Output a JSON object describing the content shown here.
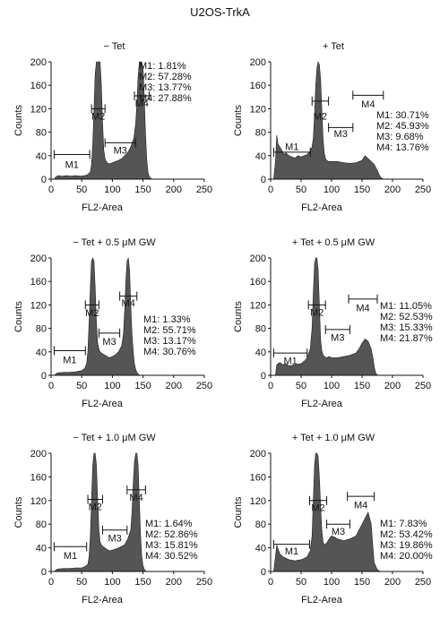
{
  "figure_title": "U2OS-TrkA",
  "colors": {
    "fill": "#555555",
    "axis": "#111111",
    "background": "#ffffff"
  },
  "chart_data": [
    {
      "type": "area",
      "title": "− Tet",
      "xlabel": "FL2-Area",
      "ylabel": "Counts",
      "xlim": [
        0,
        250
      ],
      "ylim": [
        0,
        200
      ],
      "xticks": [
        0,
        50,
        100,
        150,
        200,
        250
      ],
      "yticks": [
        0,
        40,
        80,
        120,
        160,
        200
      ],
      "series": [
        {
          "x": [
            0,
            5,
            8,
            12,
            18,
            25,
            32,
            40,
            48,
            55,
            60,
            64,
            66,
            68,
            70,
            72,
            74,
            76,
            78,
            80,
            82,
            84,
            86,
            88,
            90,
            92,
            95,
            100,
            105,
            110,
            115,
            120,
            125,
            130,
            135,
            138,
            140,
            142,
            144,
            146,
            148,
            150,
            152,
            154,
            156,
            158,
            160,
            162,
            165,
            170
          ],
          "y": [
            0,
            0,
            4,
            6,
            5,
            6,
            5,
            6,
            5,
            6,
            8,
            12,
            25,
            60,
            120,
            180,
            200,
            200,
            200,
            200,
            160,
            95,
            50,
            35,
            30,
            28,
            26,
            28,
            30,
            32,
            35,
            40,
            45,
            55,
            70,
            95,
            130,
            175,
            200,
            200,
            200,
            190,
            140,
            80,
            35,
            12,
            5,
            2,
            0,
            0
          ]
        }
      ],
      "annotations": [
        {
          "label": "M1",
          "x_start": 5,
          "x_end": 63,
          "y": 42,
          "label_y": 25
        },
        {
          "label": "M2",
          "x_start": 66,
          "x_end": 88,
          "y": 120,
          "label_y": 108
        },
        {
          "label": "M3",
          "x_start": 88,
          "x_end": 138,
          "y": 62,
          "label_y": 50
        },
        {
          "label": "M4",
          "x_start": 136,
          "x_end": 160,
          "y": 142,
          "label_y": 130
        }
      ],
      "stats": [
        "M1: 1.81%",
        "M2: 57.28%",
        "M3: 13.77%",
        "M4: 27.88%"
      ]
    },
    {
      "type": "area",
      "title": "+ Tet",
      "xlabel": "FL2-Area",
      "ylabel": "Counts",
      "xlim": [
        0,
        250
      ],
      "ylim": [
        0,
        200
      ],
      "xticks": [
        0,
        50,
        100,
        150,
        200,
        250
      ],
      "yticks": [
        0,
        40,
        80,
        120,
        160,
        200
      ],
      "series": [
        {
          "x": [
            0,
            5,
            8,
            10,
            12,
            15,
            18,
            22,
            25,
            30,
            35,
            40,
            45,
            50,
            55,
            60,
            65,
            68,
            70,
            72,
            74,
            76,
            78,
            80,
            82,
            84,
            86,
            88,
            90,
            92,
            95,
            100,
            110,
            120,
            130,
            140,
            150,
            155,
            160,
            165,
            170,
            175,
            178,
            180,
            182,
            185,
            190
          ],
          "y": [
            0,
            0,
            30,
            75,
            60,
            55,
            50,
            42,
            45,
            40,
            38,
            36,
            40,
            38,
            40,
            42,
            48,
            55,
            70,
            110,
            160,
            190,
            200,
            195,
            170,
            120,
            70,
            45,
            35,
            32,
            30,
            30,
            30,
            28,
            27,
            28,
            32,
            40,
            35,
            30,
            25,
            15,
            8,
            4,
            2,
            0,
            0
          ]
        }
      ],
      "annotations": [
        {
          "label": "M1",
          "x_start": 5,
          "x_end": 65,
          "y": 46,
          "label_y": 56
        },
        {
          "label": "M2",
          "x_start": 68,
          "x_end": 95,
          "y": 133,
          "label_y": 108
        },
        {
          "label": "M3",
          "x_start": 95,
          "x_end": 135,
          "y": 88,
          "label_y": 78
        },
        {
          "label": "M4",
          "x_start": 135,
          "x_end": 185,
          "y": 143,
          "label_y": 128
        }
      ],
      "stats": [
        "M1: 30.71%",
        "M2: 45.93%",
        "M3: 9.68%",
        "M4: 13.76%"
      ]
    },
    {
      "type": "area",
      "title": "− Tet + 0.5 μM GW",
      "xlabel": "FL2-Area",
      "ylabel": "Counts",
      "xlim": [
        0,
        250
      ],
      "ylim": [
        0,
        200
      ],
      "xticks": [
        0,
        50,
        100,
        150,
        200,
        250
      ],
      "yticks": [
        0,
        40,
        80,
        120,
        160,
        200
      ],
      "series": [
        {
          "x": [
            0,
            5,
            10,
            20,
            30,
            40,
            50,
            55,
            58,
            60,
            62,
            64,
            66,
            68,
            70,
            72,
            74,
            76,
            78,
            80,
            82,
            85,
            90,
            95,
            100,
            105,
            110,
            115,
            118,
            120,
            122,
            124,
            126,
            128,
            130,
            132,
            134,
            136,
            138,
            140,
            142,
            145,
            150
          ],
          "y": [
            0,
            0,
            4,
            5,
            5,
            6,
            8,
            12,
            20,
            40,
            90,
            150,
            195,
            200,
            195,
            150,
            90,
            55,
            45,
            40,
            38,
            36,
            33,
            30,
            32,
            35,
            40,
            50,
            70,
            110,
            160,
            195,
            200,
            180,
            120,
            70,
            40,
            20,
            10,
            5,
            2,
            0,
            0
          ]
        }
      ],
      "annotations": [
        {
          "label": "M1",
          "x_start": 5,
          "x_end": 56,
          "y": 42,
          "label_y": 27
        },
        {
          "label": "M2",
          "x_start": 56,
          "x_end": 78,
          "y": 120,
          "label_y": 107
        },
        {
          "label": "M3",
          "x_start": 78,
          "x_end": 112,
          "y": 72,
          "label_y": 58
        },
        {
          "label": "M4",
          "x_start": 112,
          "x_end": 140,
          "y": 135,
          "label_y": 124
        }
      ],
      "stats": [
        "M1: 1.33%",
        "M2: 55.71%",
        "M3: 13.17%",
        "M4: 30.76%"
      ]
    },
    {
      "type": "area",
      "title": "+ Tet + 0.5 μM GW",
      "xlabel": "FL2-Area",
      "ylabel": "Counts",
      "xlim": [
        0,
        250
      ],
      "ylim": [
        0,
        200
      ],
      "xticks": [
        0,
        50,
        100,
        150,
        200,
        250
      ],
      "yticks": [
        0,
        40,
        80,
        120,
        160,
        200
      ],
      "series": [
        {
          "x": [
            0,
            8,
            10,
            15,
            20,
            25,
            30,
            40,
            50,
            55,
            60,
            65,
            68,
            70,
            72,
            74,
            76,
            78,
            80,
            82,
            84,
            86,
            88,
            92,
            96,
            100,
            110,
            120,
            130,
            140,
            145,
            150,
            155,
            160,
            165,
            168,
            170,
            172,
            175
          ],
          "y": [
            0,
            0,
            18,
            22,
            18,
            20,
            16,
            18,
            20,
            24,
            30,
            45,
            80,
            140,
            190,
            200,
            200,
            180,
            120,
            60,
            42,
            35,
            32,
            30,
            32,
            30,
            30,
            32,
            34,
            38,
            45,
            55,
            62,
            58,
            45,
            30,
            15,
            5,
            0
          ]
        }
      ],
      "annotations": [
        {
          "label": "M1",
          "x_start": 5,
          "x_end": 60,
          "y": 38,
          "label_y": 25
        },
        {
          "label": "M2",
          "x_start": 62,
          "x_end": 90,
          "y": 120,
          "label_y": 108
        },
        {
          "label": "M3",
          "x_start": 90,
          "x_end": 130,
          "y": 78,
          "label_y": 65
        },
        {
          "label": "M4",
          "x_start": 128,
          "x_end": 175,
          "y": 130,
          "label_y": 115
        }
      ],
      "stats": [
        "M1: 11.05%",
        "M2: 52.53%",
        "M3: 15.33%",
        "M4: 21.87%"
      ]
    },
    {
      "type": "area",
      "title": "− Tet  + 1.0 μM GW",
      "xlabel": "FL2-Area",
      "ylabel": "Counts",
      "xlim": [
        0,
        250
      ],
      "ylim": [
        0,
        200
      ],
      "xticks": [
        0,
        50,
        100,
        150,
        200,
        250
      ],
      "yticks": [
        0,
        40,
        80,
        120,
        160,
        200
      ],
      "series": [
        {
          "x": [
            0,
            5,
            10,
            20,
            30,
            40,
            50,
            55,
            60,
            62,
            64,
            66,
            68,
            70,
            72,
            74,
            76,
            78,
            80,
            82,
            85,
            90,
            95,
            100,
            110,
            120,
            125,
            130,
            132,
            134,
            136,
            138,
            140,
            142,
            144,
            146,
            148,
            150,
            152,
            155,
            160
          ],
          "y": [
            0,
            0,
            4,
            5,
            5,
            6,
            6,
            8,
            12,
            25,
            60,
            120,
            180,
            200,
            200,
            180,
            120,
            70,
            50,
            45,
            42,
            38,
            35,
            36,
            40,
            45,
            55,
            70,
            100,
            150,
            185,
            200,
            200,
            180,
            120,
            60,
            25,
            10,
            4,
            0,
            0
          ]
        }
      ],
      "annotations": [
        {
          "label": "M1",
          "x_start": 5,
          "x_end": 58,
          "y": 42,
          "label_y": 27
        },
        {
          "label": "M2",
          "x_start": 60,
          "x_end": 84,
          "y": 122,
          "label_y": 110
        },
        {
          "label": "M3",
          "x_start": 84,
          "x_end": 124,
          "y": 70,
          "label_y": 57
        },
        {
          "label": "M4",
          "x_start": 124,
          "x_end": 154,
          "y": 138,
          "label_y": 126
        }
      ],
      "stats": [
        "M1: 1.64%",
        "M2: 52.86%",
        "M3: 15.81%",
        "M4: 30.52%"
      ]
    },
    {
      "type": "area",
      "title": "+ Tet + 1.0 μM GW",
      "xlabel": "FL2-Area",
      "ylabel": "Counts",
      "xlim": [
        0,
        250
      ],
      "ylim": [
        0,
        200
      ],
      "xticks": [
        0,
        50,
        100,
        150,
        200,
        250
      ],
      "yticks": [
        0,
        40,
        80,
        120,
        160,
        200
      ],
      "series": [
        {
          "x": [
            0,
            5,
            8,
            10,
            15,
            20,
            30,
            40,
            50,
            55,
            60,
            65,
            68,
            70,
            72,
            74,
            76,
            78,
            80,
            82,
            84,
            86,
            88,
            92,
            96,
            100,
            105,
            110,
            120,
            130,
            140,
            145,
            150,
            155,
            160,
            165,
            168,
            170,
            175,
            180
          ],
          "y": [
            0,
            0,
            25,
            45,
            30,
            25,
            20,
            18,
            20,
            22,
            25,
            35,
            60,
            120,
            180,
            200,
            200,
            195,
            160,
            110,
            70,
            50,
            45,
            48,
            55,
            60,
            58,
            55,
            52,
            55,
            60,
            70,
            80,
            90,
            100,
            80,
            40,
            15,
            3,
            0
          ]
        }
      ],
      "annotations": [
        {
          "label": "M1",
          "x_start": 5,
          "x_end": 64,
          "y": 46,
          "label_y": 35
        },
        {
          "label": "M2",
          "x_start": 64,
          "x_end": 92,
          "y": 120,
          "label_y": 108
        },
        {
          "label": "M3",
          "x_start": 92,
          "x_end": 130,
          "y": 80,
          "label_y": 68
        },
        {
          "label": "M4",
          "x_start": 126,
          "x_end": 170,
          "y": 127,
          "label_y": 113
        }
      ],
      "stats": [
        "M1: 7.83%",
        "M2: 53.42%",
        "M3: 19.86%",
        "M4: 20.00%"
      ]
    }
  ]
}
